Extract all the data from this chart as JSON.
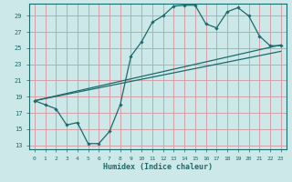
{
  "xlabel": "Humidex (Indice chaleur)",
  "bg_color": "#cce8e8",
  "grid_color": "#d4a0a8",
  "line_color": "#1a6b6b",
  "xlim": [
    -0.5,
    23.5
  ],
  "ylim": [
    12.5,
    30.5
  ],
  "yticks": [
    13,
    15,
    17,
    19,
    21,
    23,
    25,
    27,
    29
  ],
  "xticks": [
    0,
    1,
    2,
    3,
    4,
    5,
    6,
    7,
    8,
    9,
    10,
    11,
    12,
    13,
    14,
    15,
    16,
    17,
    18,
    19,
    20,
    21,
    22,
    23
  ],
  "main_x": [
    0,
    1,
    2,
    3,
    4,
    5,
    6,
    7,
    8,
    9,
    10,
    11,
    12,
    13,
    14,
    15,
    16,
    17,
    18,
    19,
    20,
    21,
    22,
    23
  ],
  "main_y": [
    18.5,
    18.0,
    17.5,
    15.5,
    15.8,
    13.2,
    13.2,
    14.7,
    18.0,
    24.0,
    25.8,
    28.2,
    29.0,
    30.2,
    30.3,
    30.3,
    28.0,
    27.5,
    29.5,
    30.0,
    29.0,
    26.5,
    25.3,
    25.3
  ],
  "trend1_x": [
    0,
    23
  ],
  "trend1_y": [
    18.5,
    25.4
  ],
  "trend2_x": [
    0,
    23
  ],
  "trend2_y": [
    18.5,
    24.6
  ]
}
